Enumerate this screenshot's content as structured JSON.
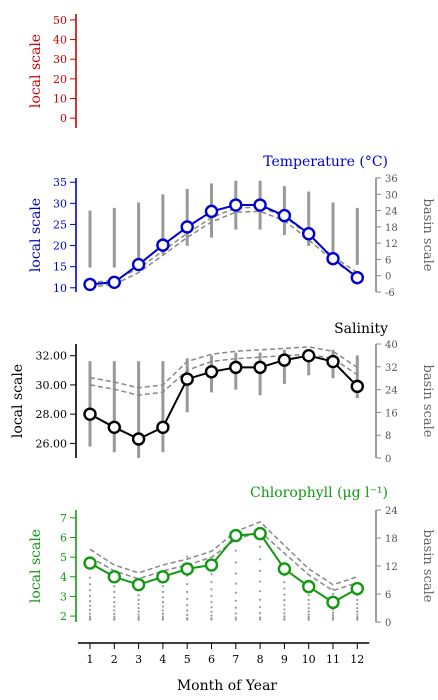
{
  "figure": {
    "xlabel": "Month of Year",
    "months": [
      1,
      2,
      3,
      4,
      5,
      6,
      7,
      8,
      9,
      10,
      11,
      12
    ]
  },
  "chart_data": [
    {
      "type": "line",
      "panel": "empty",
      "title": "",
      "ylabel_left": "local scale",
      "ylabel_right": "",
      "color": "#cc0000",
      "left_ticks": [
        0,
        10,
        20,
        30,
        40,
        50
      ],
      "left_ylim": [
        -5,
        53
      ],
      "series": []
    },
    {
      "type": "line",
      "panel": "temperature",
      "title": "Temperature (°C)",
      "ylabel_left": "local scale",
      "ylabel_right": "basin scale",
      "color": "#0000cc",
      "left_ticks": [
        10,
        15,
        20,
        25,
        30,
        35
      ],
      "left_ylim": [
        9,
        36
      ],
      "right_ticks": [
        -6,
        0,
        6,
        12,
        18,
        24,
        30,
        36
      ],
      "right_ylim": [
        -6,
        36
      ],
      "x": [
        1,
        2,
        3,
        4,
        5,
        6,
        7,
        8,
        9,
        10,
        11,
        12
      ],
      "local": [
        10.8,
        11.3,
        15.5,
        20.1,
        24.4,
        28.1,
        29.6,
        29.6,
        27.1,
        22.8,
        16.9,
        12.4
      ],
      "basin_mean": [
        11.2,
        11.8,
        14.6,
        18.7,
        22.9,
        26.6,
        28.9,
        29.1,
        26.9,
        22.4,
        17.4,
        13.6
      ],
      "basin_median": [
        10.2,
        10.8,
        13.6,
        17.7,
        21.9,
        25.6,
        27.9,
        28.1,
        25.9,
        21.4,
        16.4,
        12.6
      ],
      "basin_range": [
        [
          3,
          24
        ],
        [
          3,
          25
        ],
        [
          5,
          27
        ],
        [
          8,
          30
        ],
        [
          11,
          32
        ],
        [
          14,
          34
        ],
        [
          17,
          35
        ],
        [
          17,
          35
        ],
        [
          15,
          33
        ],
        [
          11,
          31
        ],
        [
          6,
          27
        ],
        [
          4,
          25
        ]
      ]
    },
    {
      "type": "line",
      "panel": "salinity",
      "title": "Salinity",
      "ylabel_left": "local scale",
      "ylabel_right": "basin scale",
      "color": "#000000",
      "left_ticks": [
        "26.00",
        "28.00",
        "30.00",
        "32.00"
      ],
      "left_tick_values": [
        26,
        28,
        30,
        32
      ],
      "left_ylim": [
        25,
        32.8
      ],
      "right_ticks": [
        0,
        8,
        16,
        24,
        32,
        40
      ],
      "right_ylim": [
        0,
        40
      ],
      "x": [
        1,
        2,
        3,
        4,
        5,
        6,
        7,
        8,
        9,
        10,
        11,
        12
      ],
      "local": [
        28.0,
        27.1,
        26.3,
        27.1,
        30.4,
        30.9,
        31.2,
        31.2,
        31.7,
        32.0,
        31.6,
        29.9
      ],
      "basin_mean": [
        30.5,
        30.2,
        29.8,
        30.0,
        31.6,
        32.1,
        32.3,
        32.4,
        32.5,
        32.6,
        32.3,
        31.2
      ],
      "basin_median": [
        30.0,
        29.7,
        29.3,
        29.5,
        31.0,
        31.6,
        31.8,
        31.9,
        32.0,
        32.1,
        31.8,
        30.7
      ],
      "basin_range": [
        [
          4,
          34
        ],
        [
          2,
          34
        ],
        [
          0,
          34
        ],
        [
          2,
          34
        ],
        [
          16,
          35
        ],
        [
          23,
          36
        ],
        [
          24,
          37
        ],
        [
          22,
          37
        ],
        [
          26,
          38
        ],
        [
          29,
          38
        ],
        [
          28,
          38
        ],
        [
          21,
          36
        ]
      ]
    },
    {
      "type": "line",
      "panel": "chlorophyll",
      "title": "Chlorophyll (μg l⁻¹)",
      "ylabel_left": "local scale",
      "ylabel_right": "basin scale",
      "color": "#119911",
      "left_ticks": [
        2,
        3,
        4,
        5,
        6,
        7
      ],
      "left_ylim": [
        1.7,
        7.4
      ],
      "right_ticks": [
        0,
        6,
        12,
        18,
        24
      ],
      "right_ylim": [
        0,
        24
      ],
      "x": [
        1,
        2,
        3,
        4,
        5,
        6,
        7,
        8,
        9,
        10,
        11,
        12
      ],
      "local": [
        4.7,
        4.0,
        3.6,
        4.0,
        4.4,
        4.6,
        6.1,
        6.2,
        4.4,
        3.5,
        2.7,
        3.4
      ],
      "basin_mean": [
        5.4,
        4.6,
        4.2,
        4.6,
        4.9,
        5.3,
        6.3,
        6.8,
        5.6,
        4.4,
        3.6,
        4.0
      ],
      "basin_median": [
        5.0,
        4.3,
        3.9,
        4.3,
        4.6,
        5.0,
        5.9,
        6.3,
        5.2,
        4.1,
        3.3,
        3.7
      ],
      "basin_scatter": [
        [
          0.5,
          9.5
        ],
        [
          0.5,
          9
        ],
        [
          0.5,
          8
        ],
        [
          0.5,
          9
        ],
        [
          0.5,
          14
        ],
        [
          0.5,
          12
        ],
        [
          0.5,
          18
        ],
        [
          0.5,
          19
        ],
        [
          0.5,
          10
        ],
        [
          0.5,
          8
        ],
        [
          0.5,
          7
        ],
        [
          0.5,
          8
        ]
      ]
    }
  ]
}
